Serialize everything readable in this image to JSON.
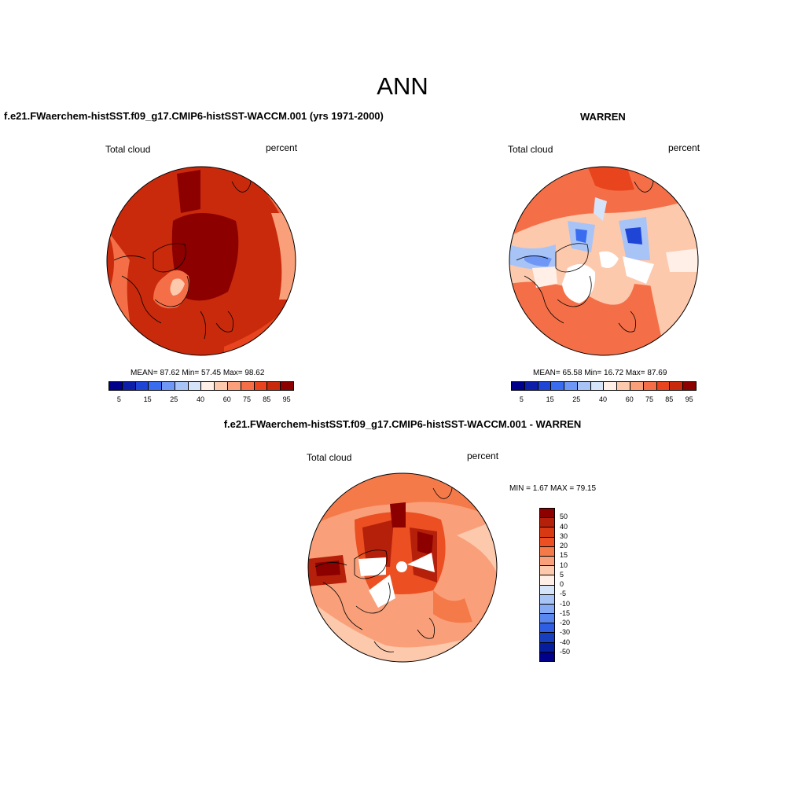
{
  "figure": {
    "season_title": "ANN"
  },
  "panels": [
    {
      "title": "f.e21.FWaerchem-histSST.f09_g17.CMIP6-histSST-WACCM.001 (yrs 1971-2000)",
      "variable": "Total cloud",
      "units": "percent",
      "stats": "MEAN=  87.62  Min=  57.45  Max=  98.62",
      "colorbar_labels": [
        "5",
        "15",
        "25",
        "40",
        "60",
        "75",
        "85",
        "95"
      ]
    },
    {
      "title": "WARREN",
      "variable": "Total cloud",
      "units": "percent",
      "stats": "MEAN=  65.58  Min=  16.72  Max=  87.69",
      "colorbar_labels": [
        "5",
        "15",
        "25",
        "40",
        "60",
        "75",
        "85",
        "95"
      ]
    },
    {
      "title": "f.e21.FWaerchem-histSST.f09_g17.CMIP6-histSST-WACCM.001 - WARREN",
      "variable": "Total cloud",
      "units": "percent",
      "stats": "MIN =   1.67 MAX =  79.15",
      "colorbar_labels": [
        "50",
        "40",
        "30",
        "20",
        "15",
        "10",
        "5",
        "0",
        "-5",
        "-10",
        "-15",
        "-20",
        "-30",
        "-40",
        "-50"
      ]
    }
  ],
  "colors": {
    "abs_scale": [
      "#00008a",
      "#0d1fa8",
      "#1f45d6",
      "#3a6cf0",
      "#6f97f5",
      "#a8c4f7",
      "#d6e4fa",
      "#ffefe6",
      "#fcc9ad",
      "#f9a07a",
      "#f46f47",
      "#e8451e",
      "#c92a0c",
      "#8c0000"
    ],
    "diff_scale": [
      "#8c0000",
      "#b5200a",
      "#d83812",
      "#eb4f22",
      "#f57a4a",
      "#f9a07a",
      "#fcc9ad",
      "#ffefe6",
      "#d6e4fa",
      "#a8c4f7",
      "#86aaf3",
      "#5a86f0",
      "#2f5ee3",
      "#173fbd",
      "#071e9c",
      "#00008a"
    ],
    "coastline": "#000000",
    "missing": "#ffffff"
  }
}
